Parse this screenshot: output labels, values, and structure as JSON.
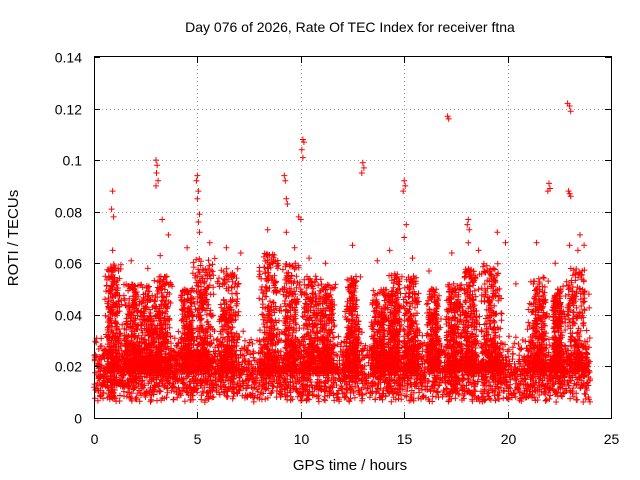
{
  "chart_data": {
    "type": "scatter",
    "title": "Day 076 of 2026, Rate Of TEC Index for receiver ftna",
    "xlabel": "GPS time / hours",
    "ylabel": "ROTI / TECUs",
    "xlim": [
      0,
      25
    ],
    "ylim": [
      0,
      0.14
    ],
    "xticks": [
      "0",
      "5",
      "10",
      "15",
      "20",
      "25"
    ],
    "yticks": [
      "0",
      "0.02",
      "0.04",
      "0.06",
      "0.08",
      "0.1",
      "0.12",
      "0.14"
    ],
    "grid": true,
    "marker": "+",
    "marker_color": "#ff0000",
    "series_name": "ROTI",
    "baseline": {
      "min": 0.006,
      "typical": 0.018,
      "dense_upper": 0.035
    },
    "outliers": [
      {
        "x": 0.9,
        "y": 0.088
      },
      {
        "x": 0.85,
        "y": 0.081
      },
      {
        "x": 0.95,
        "y": 0.078
      },
      {
        "x": 3.0,
        "y": 0.1
      },
      {
        "x": 3.05,
        "y": 0.098
      },
      {
        "x": 3.02,
        "y": 0.095
      },
      {
        "x": 3.1,
        "y": 0.092
      },
      {
        "x": 3.0,
        "y": 0.09
      },
      {
        "x": 3.3,
        "y": 0.077
      },
      {
        "x": 5.0,
        "y": 0.094
      },
      {
        "x": 4.95,
        "y": 0.092
      },
      {
        "x": 5.05,
        "y": 0.088
      },
      {
        "x": 5.0,
        "y": 0.085
      },
      {
        "x": 5.1,
        "y": 0.079
      },
      {
        "x": 5.05,
        "y": 0.076
      },
      {
        "x": 9.2,
        "y": 0.094
      },
      {
        "x": 9.25,
        "y": 0.092
      },
      {
        "x": 9.3,
        "y": 0.085
      },
      {
        "x": 9.35,
        "y": 0.083
      },
      {
        "x": 9.9,
        "y": 0.078
      },
      {
        "x": 10.0,
        "y": 0.077
      },
      {
        "x": 10.1,
        "y": 0.108
      },
      {
        "x": 10.15,
        "y": 0.107
      },
      {
        "x": 10.05,
        "y": 0.104
      },
      {
        "x": 10.1,
        "y": 0.101
      },
      {
        "x": 13.0,
        "y": 0.099
      },
      {
        "x": 13.05,
        "y": 0.097
      },
      {
        "x": 12.95,
        "y": 0.095
      },
      {
        "x": 15.0,
        "y": 0.092
      },
      {
        "x": 15.05,
        "y": 0.09
      },
      {
        "x": 14.95,
        "y": 0.088
      },
      {
        "x": 15.1,
        "y": 0.075
      },
      {
        "x": 17.1,
        "y": 0.117
      },
      {
        "x": 17.15,
        "y": 0.116
      },
      {
        "x": 18.1,
        "y": 0.077
      },
      {
        "x": 18.05,
        "y": 0.075
      },
      {
        "x": 18.15,
        "y": 0.073
      },
      {
        "x": 22.0,
        "y": 0.091
      },
      {
        "x": 22.05,
        "y": 0.089
      },
      {
        "x": 21.95,
        "y": 0.088
      },
      {
        "x": 22.9,
        "y": 0.122
      },
      {
        "x": 23.0,
        "y": 0.121
      },
      {
        "x": 23.05,
        "y": 0.119
      },
      {
        "x": 22.95,
        "y": 0.088
      },
      {
        "x": 23.05,
        "y": 0.086
      },
      {
        "x": 23.0,
        "y": 0.087
      },
      {
        "x": 23.5,
        "y": 0.071
      }
    ],
    "peaks": [
      {
        "x": 0.9,
        "y": 0.065
      },
      {
        "x": 1.8,
        "y": 0.061
      },
      {
        "x": 2.6,
        "y": 0.058
      },
      {
        "x": 3.2,
        "y": 0.063
      },
      {
        "x": 3.6,
        "y": 0.071
      },
      {
        "x": 4.5,
        "y": 0.066
      },
      {
        "x": 5.1,
        "y": 0.072
      },
      {
        "x": 5.6,
        "y": 0.068
      },
      {
        "x": 6.4,
        "y": 0.066
      },
      {
        "x": 7.1,
        "y": 0.064
      },
      {
        "x": 8.4,
        "y": 0.073
      },
      {
        "x": 9.3,
        "y": 0.072
      },
      {
        "x": 9.7,
        "y": 0.066
      },
      {
        "x": 10.4,
        "y": 0.062
      },
      {
        "x": 11.2,
        "y": 0.06
      },
      {
        "x": 12.5,
        "y": 0.067
      },
      {
        "x": 13.7,
        "y": 0.061
      },
      {
        "x": 14.3,
        "y": 0.065
      },
      {
        "x": 15.0,
        "y": 0.07
      },
      {
        "x": 15.4,
        "y": 0.062
      },
      {
        "x": 16.2,
        "y": 0.057
      },
      {
        "x": 17.3,
        "y": 0.064
      },
      {
        "x": 18.1,
        "y": 0.068
      },
      {
        "x": 18.6,
        "y": 0.065
      },
      {
        "x": 19.5,
        "y": 0.072
      },
      {
        "x": 19.9,
        "y": 0.068
      },
      {
        "x": 20.4,
        "y": 0.052
      },
      {
        "x": 21.4,
        "y": 0.068
      },
      {
        "x": 22.3,
        "y": 0.06
      },
      {
        "x": 23.0,
        "y": 0.067
      },
      {
        "x": 23.4,
        "y": 0.065
      },
      {
        "x": 23.7,
        "y": 0.067
      }
    ],
    "bursts": [
      {
        "center": 0.9,
        "width": 0.45,
        "top": 0.06
      },
      {
        "center": 1.8,
        "width": 0.5,
        "top": 0.052
      },
      {
        "center": 2.6,
        "width": 0.6,
        "top": 0.052
      },
      {
        "center": 3.3,
        "width": 0.5,
        "top": 0.055
      },
      {
        "center": 4.5,
        "width": 0.4,
        "top": 0.05
      },
      {
        "center": 5.3,
        "width": 0.6,
        "top": 0.062
      },
      {
        "center": 6.5,
        "width": 0.6,
        "top": 0.058
      },
      {
        "center": 8.5,
        "width": 0.6,
        "top": 0.065
      },
      {
        "center": 9.5,
        "width": 0.5,
        "top": 0.06
      },
      {
        "center": 10.5,
        "width": 0.6,
        "top": 0.055
      },
      {
        "center": 11.3,
        "width": 0.5,
        "top": 0.052
      },
      {
        "center": 12.5,
        "width": 0.4,
        "top": 0.055
      },
      {
        "center": 13.8,
        "width": 0.5,
        "top": 0.05
      },
      {
        "center": 14.5,
        "width": 0.4,
        "top": 0.056
      },
      {
        "center": 15.3,
        "width": 0.5,
        "top": 0.055
      },
      {
        "center": 16.4,
        "width": 0.4,
        "top": 0.05
      },
      {
        "center": 17.4,
        "width": 0.5,
        "top": 0.052
      },
      {
        "center": 18.2,
        "width": 0.5,
        "top": 0.058
      },
      {
        "center": 19.2,
        "width": 0.6,
        "top": 0.06
      },
      {
        "center": 21.5,
        "width": 0.6,
        "top": 0.055
      },
      {
        "center": 22.4,
        "width": 0.3,
        "top": 0.05
      },
      {
        "center": 23.3,
        "width": 0.7,
        "top": 0.058
      }
    ]
  }
}
